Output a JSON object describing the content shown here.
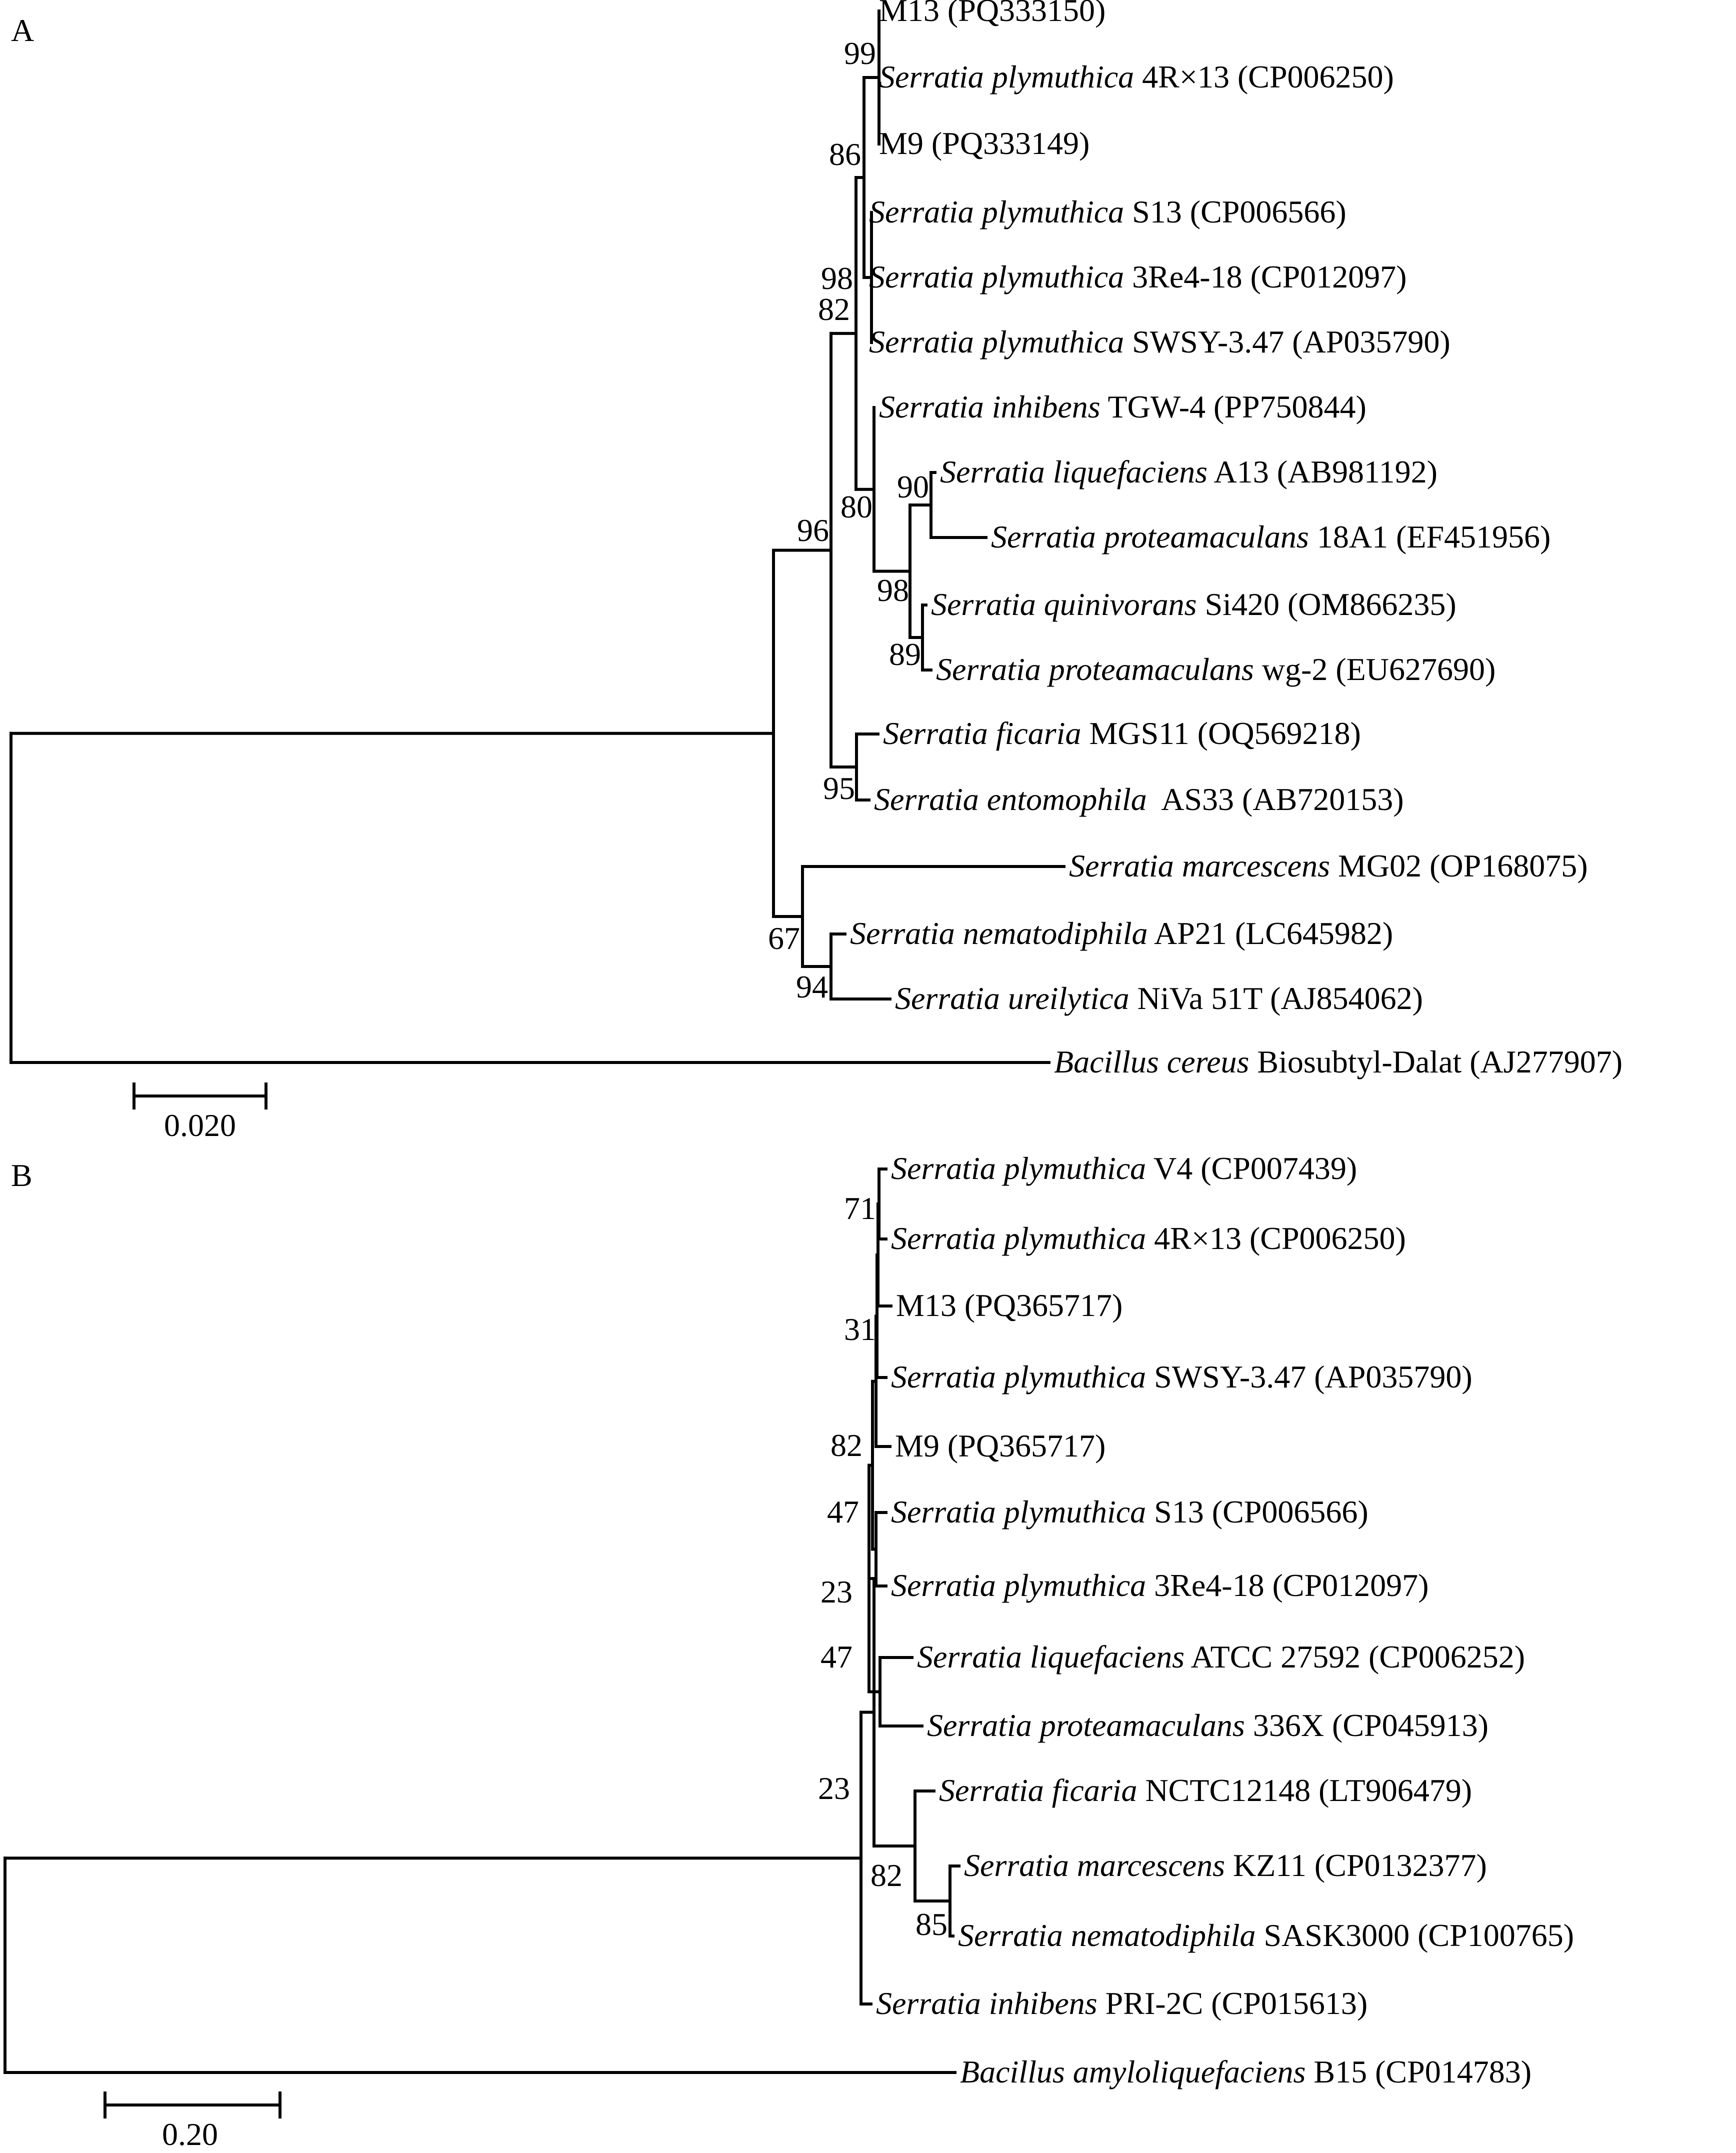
{
  "panels": [
    {
      "label": "A",
      "scale_label": "0.020",
      "taxa": [
        {
          "species": "",
          "rest": "M13 (PQ333150)"
        },
        {
          "species": "Serratia plymuthica",
          "rest": " 4R×13 (CP006250)"
        },
        {
          "species": "",
          "rest": "M9 (PQ333149)"
        },
        {
          "species": "Serratia plymuthica",
          "rest": " S13 (CP006566)"
        },
        {
          "species": "Serratia plymuthica",
          "rest": " 3Re4-18 (CP012097)"
        },
        {
          "species": "Serratia plymuthica",
          "rest": " SWSY-3.47 (AP035790)"
        },
        {
          "species": "Serratia inhibens",
          "rest": " TGW-4 (PP750844)"
        },
        {
          "species": "Serratia liquefaciens",
          "rest": " A13 (AB981192)"
        },
        {
          "species": "Serratia proteamaculans",
          "rest": " 18A1 (EF451956)"
        },
        {
          "species": "Serratia quinivorans",
          "rest": " Si420 (OM866235)"
        },
        {
          "species": "Serratia proteamaculans",
          "rest": " wg-2 (EU627690)"
        },
        {
          "species": "Serratia ficaria",
          "rest": " MGS11 (OQ569218)"
        },
        {
          "species": "Serratia entomophila",
          "rest": "  AS33 (AB720153)"
        },
        {
          "species": "Serratia marcescens",
          "rest": " MG02 (OP168075)"
        },
        {
          "species": "Serratia nematodiphila",
          "rest": " AP21 (LC645982)"
        },
        {
          "species": "Serratia ureilytica",
          "rest": " NiVa 51T (AJ854062)"
        },
        {
          "species": "Bacillus cereus",
          "rest": " Biosubtyl-Dalat (AJ277907)"
        }
      ],
      "bootstrap": [
        "99",
        "86",
        "98",
        "82",
        "96",
        "80",
        "90",
        "98",
        "89",
        "95",
        "67",
        "94"
      ]
    },
    {
      "label": "B",
      "scale_label": "0.20",
      "taxa": [
        {
          "species": "Serratia plymuthica",
          "rest": " V4 (CP007439)"
        },
        {
          "species": "Serratia plymuthica",
          "rest": " 4R×13 (CP006250)"
        },
        {
          "species": "",
          "rest": "M13 (PQ365717)"
        },
        {
          "species": "Serratia plymuthica",
          "rest": " SWSY-3.47 (AP035790)"
        },
        {
          "species": "",
          "rest": "M9 (PQ365717)"
        },
        {
          "species": "Serratia plymuthica",
          "rest": " S13 (CP006566)"
        },
        {
          "species": "Serratia plymuthica",
          "rest": " 3Re4-18 (CP012097)"
        },
        {
          "species": "Serratia liquefaciens",
          "rest": " ATCC 27592 (CP006252)"
        },
        {
          "species": "Serratia proteamaculans",
          "rest": " 336X (CP045913)"
        },
        {
          "species": "Serratia ficaria",
          "rest": " NCTC12148 (LT906479)"
        },
        {
          "species": "Serratia marcescens",
          "rest": " KZ11 (CP0132377)"
        },
        {
          "species": "Serratia nematodiphila",
          "rest": " SASK3000 (CP100765)"
        },
        {
          "species": "Serratia inhibens",
          "rest": " PRI-2C (CP015613)"
        },
        {
          "species": "Bacillus amyloliquefaciens",
          "rest": " B15 (CP014783)"
        }
      ],
      "bootstrap": [
        "71",
        "31",
        "82",
        "47",
        "23",
        "47",
        "23",
        "82",
        "85"
      ]
    }
  ]
}
